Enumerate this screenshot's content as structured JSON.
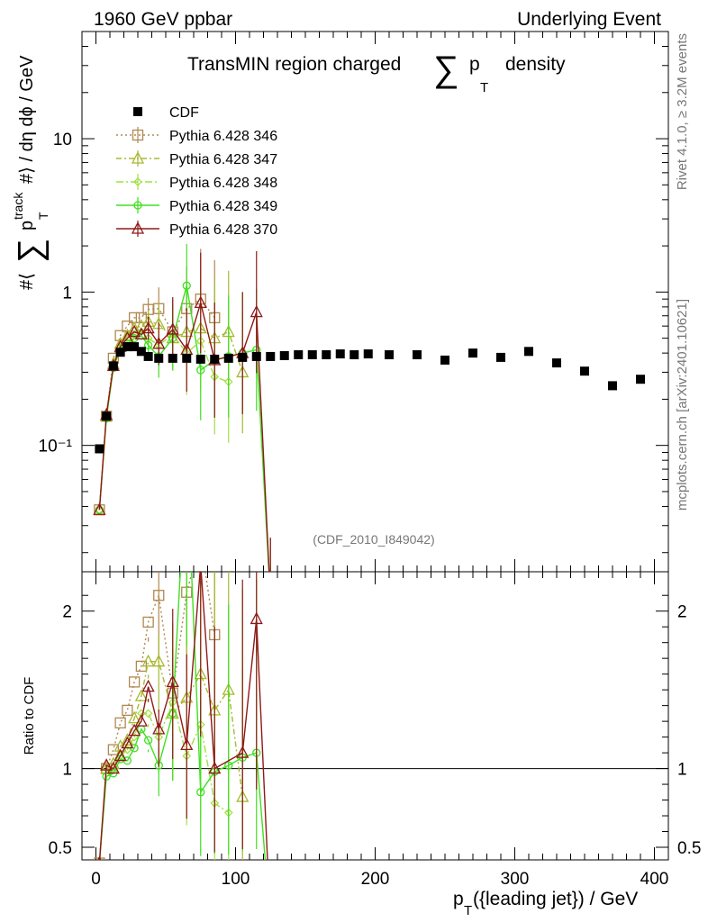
{
  "header": {
    "left": "1960 GeV ppbar",
    "right": "Underlying Event"
  },
  "chart_data": {
    "type": "scatter",
    "title_prefix": "TransMIN region charged",
    "title_sum": "∑",
    "title_p": "p",
    "title_sub": "T",
    "title_suffix": "density",
    "ylabel": {
      "prefix": "#⟨",
      "sum": "∑",
      "p": "p",
      "sup": "track",
      "sub": "T",
      "suffix": "#⟩ / dη dϕ / GeV"
    },
    "ratio_ylabel": "Ratio to CDF",
    "xlabel": {
      "p": "p",
      "sub": "T",
      "rest": "({leading jet}) / GeV"
    },
    "analysis_id": "(CDF_2010_I849042)",
    "side_label_1": "Rivet 4.1.0, ≥ 3.2M events",
    "side_label_2": "mcplots.cern.ch [arXiv:2401.10621]",
    "xlim": [
      -10,
      410
    ],
    "ylim_log": [
      0.015,
      50
    ],
    "ratio_ylim": [
      0.42,
      2.25
    ],
    "xticks": [
      0,
      100,
      200,
      300,
      400
    ],
    "xtick_labels": [
      "0",
      "100",
      "200",
      "300",
      "400"
    ],
    "yticks": [
      0.1,
      1,
      10
    ],
    "ytick_labels": [
      "10⁻¹",
      "1",
      "10"
    ],
    "ratio_yticks": [
      0.5,
      1,
      2
    ],
    "ratio_ytick_labels": [
      "0.5",
      "1",
      "2"
    ],
    "legend": [
      {
        "name": "CDF"
      },
      {
        "name": "Pythia 6.428 346"
      },
      {
        "name": "Pythia 6.428 347"
      },
      {
        "name": "Pythia 6.428 348"
      },
      {
        "name": "Pythia 6.428 349"
      },
      {
        "name": "Pythia 6.428 370"
      }
    ],
    "cdf": {
      "x": [
        2.5,
        7.5,
        12.5,
        17.5,
        22.5,
        27.5,
        32.5,
        37.5,
        45,
        55,
        65,
        75,
        85,
        95,
        105,
        115,
        125,
        135,
        145,
        155,
        165,
        175,
        185,
        195,
        210,
        230,
        250,
        270,
        290,
        310,
        330,
        350,
        370,
        390
      ],
      "y": [
        0.095,
        0.155,
        0.33,
        0.405,
        0.44,
        0.44,
        0.41,
        0.38,
        0.37,
        0.37,
        0.37,
        0.365,
        0.365,
        0.37,
        0.375,
        0.38,
        0.38,
        0.385,
        0.39,
        0.39,
        0.39,
        0.395,
        0.39,
        0.395,
        0.39,
        0.39,
        0.36,
        0.4,
        0.375,
        0.41,
        0.345,
        0.305,
        0.245,
        0.27
      ]
    },
    "series": [
      {
        "name": "Pythia 6.428 346",
        "color": "#b08850",
        "marker": "square",
        "dash": "2,3",
        "x": [
          2.5,
          7.5,
          12.5,
          17.5,
          22.5,
          27.5,
          32.5,
          37.5,
          45,
          55,
          65,
          75,
          85
        ],
        "y": [
          0.038,
          0.155,
          0.37,
          0.52,
          0.6,
          0.68,
          0.68,
          0.77,
          0.78,
          0.55,
          0.78,
          0.9,
          0.68
        ],
        "ratio": [
          0.4,
          1.0,
          1.12,
          1.29,
          1.37,
          1.55,
          1.65,
          1.93,
          2.1,
          1.48,
          2.12,
          2.45,
          1.85
        ]
      },
      {
        "name": "Pythia 6.428 347",
        "color": "#a8b830",
        "marker": "triangle",
        "dash": "6,3,2,3",
        "x": [
          2.5,
          7.5,
          12.5,
          17.5,
          22.5,
          27.5,
          32.5,
          37.5,
          45,
          55,
          65,
          75,
          85,
          95,
          105
        ],
        "y": [
          0.038,
          0.155,
          0.34,
          0.46,
          0.52,
          0.58,
          0.6,
          0.64,
          0.62,
          0.5,
          0.55,
          0.58,
          0.5,
          0.55,
          0.3
        ],
        "ratio": [
          0.4,
          1.0,
          1.03,
          1.14,
          1.18,
          1.32,
          1.46,
          1.68,
          1.68,
          1.35,
          1.45,
          1.6,
          1.37,
          1.5,
          0.82
        ]
      },
      {
        "name": "Pythia 6.428 348",
        "color": "#a0e040",
        "marker": "diamond",
        "dash": "8,3,2,3",
        "x": [
          2.5,
          7.5,
          12.5,
          17.5,
          22.5,
          27.5,
          32.5,
          37.5,
          45,
          55,
          65,
          75,
          85,
          95
        ],
        "y": [
          0.038,
          0.155,
          0.34,
          0.44,
          0.5,
          0.53,
          0.55,
          0.5,
          0.45,
          0.53,
          0.4,
          0.48,
          0.28,
          0.26
        ],
        "ratio": [
          0.4,
          1.0,
          1.0,
          1.08,
          1.12,
          1.2,
          1.35,
          1.35,
          1.2,
          1.42,
          1.08,
          1.28,
          0.78,
          0.72
        ]
      },
      {
        "name": "Pythia 6.428 349",
        "color": "#40e020",
        "marker": "circle",
        "dash": "",
        "x": [
          2.5,
          7.5,
          12.5,
          17.5,
          22.5,
          27.5,
          32.5,
          37.5,
          45,
          55,
          65,
          75,
          85,
          95,
          105,
          115,
          125
        ],
        "y": [
          0.038,
          0.15,
          0.32,
          0.43,
          0.46,
          0.5,
          0.52,
          0.45,
          0.38,
          0.5,
          1.1,
          0.31,
          0.36,
          0.38,
          0.4,
          0.42,
          0.01
        ],
        "ratio": [
          0.4,
          0.95,
          0.97,
          1.06,
          1.05,
          1.13,
          1.25,
          1.18,
          1.02,
          1.35,
          3.0,
          0.85,
          0.98,
          1.02,
          1.07,
          1.1,
          0.01
        ]
      },
      {
        "name": "Pythia 6.428 370",
        "color": "#901818",
        "marker": "triangle-open",
        "dash": "",
        "x": [
          2.5,
          7.5,
          12.5,
          17.5,
          22.5,
          27.5,
          32.5,
          37.5,
          45,
          55,
          65,
          75,
          85,
          105,
          115,
          125
        ],
        "y": [
          0.038,
          0.158,
          0.33,
          0.44,
          0.5,
          0.55,
          0.53,
          0.58,
          0.46,
          0.57,
          0.42,
          0.85,
          0.36,
          0.4,
          0.74,
          0.01
        ],
        "ratio": [
          0.4,
          1.02,
          1.0,
          1.08,
          1.16,
          1.24,
          1.3,
          1.52,
          1.25,
          1.55,
          1.15,
          2.3,
          1.0,
          1.1,
          1.95,
          0.01
        ]
      }
    ]
  }
}
